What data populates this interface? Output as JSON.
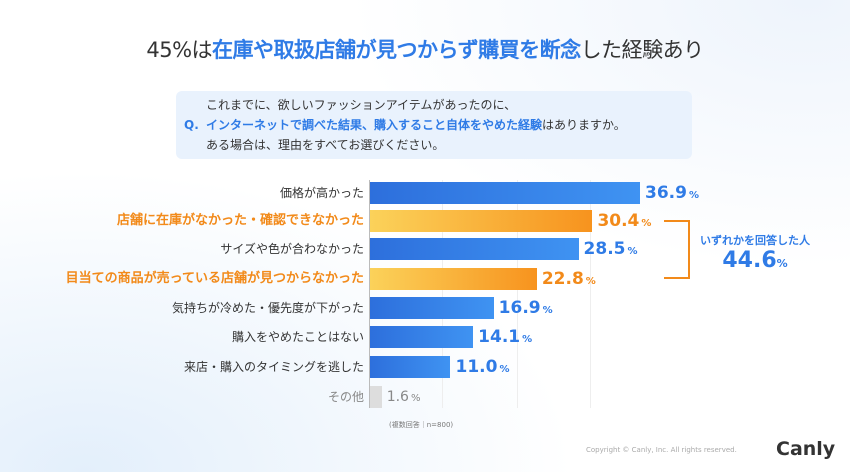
{
  "title": {
    "pre": "45%は",
    "highlight": "在庫や取扱店舗が見つからず購買を断念",
    "post": "した経験あり"
  },
  "question": {
    "label": "Q.",
    "line1": "これまでに、欲しいファッションアイテムがあったのに、",
    "line2_blue": "インターネットで調べた結果、購入すること自体をやめた経験",
    "line2_rest": "はありますか。",
    "line3": "ある場合は、理由をすべてお選びください。"
  },
  "chart_data": {
    "type": "bar",
    "orientation": "horizontal",
    "xlim": [
      0,
      36.9
    ],
    "unit": "%",
    "categories": [
      "価格が高かった",
      "店舗に在庫がなかった・確認できなかった",
      "サイズや色が合わなかった",
      "目当ての商品が売っている店舗が見つからなかった",
      "気持ちが冷めた・優先度が下がった",
      "購入をやめたことはない",
      "来店・購入のタイミングを逃した",
      "その他"
    ],
    "values": [
      36.9,
      30.4,
      28.5,
      22.8,
      16.9,
      14.1,
      11.0,
      1.6
    ],
    "labels": [
      "36.9",
      "30.4",
      "28.5",
      "22.8",
      "16.9",
      "14.1",
      "11.0",
      "1.6"
    ],
    "styles": [
      "blue",
      "orange",
      "blue",
      "orange",
      "blue",
      "blue",
      "blue",
      "gray"
    ]
  },
  "callout": {
    "title": "いずれかを回答した人",
    "value": "44.6",
    "unit": "%"
  },
  "percent": "%",
  "note": "(複数回答｜n=800)",
  "copyright": "Copyright © Canly, Inc. All rights reserved.",
  "logo": "Canly",
  "colors": {
    "blue": "#2f7be6",
    "orange": "#f28a1a"
  }
}
